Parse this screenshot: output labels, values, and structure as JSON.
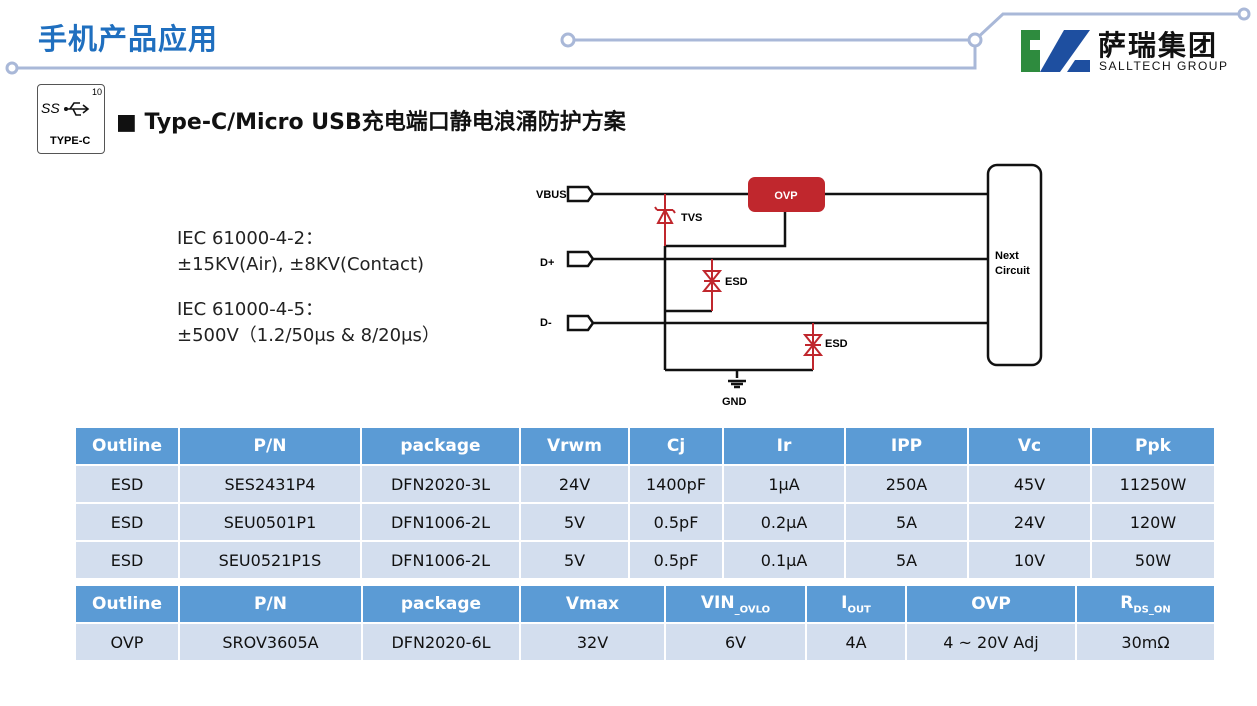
{
  "header": {
    "title": "手机产品应用",
    "logo_cn": "萨瑞集团",
    "logo_en": "SALLTECH GROUP"
  },
  "badge": {
    "ss": "SS",
    "num": "10",
    "label": "TYPE-C"
  },
  "subtitle": "■ Type-C/Micro USB充电端口静电浪涌防护方案",
  "standards": [
    {
      "name": "IEC 61000-4-2：",
      "value": "±15KV(Air), ±8KV(Contact)"
    },
    {
      "name": "IEC 61000-4-5：",
      "value": "±500V（1.2/50μs & 8/20μs）"
    }
  ],
  "diagram": {
    "vbus": "VBUS",
    "dplus": "D+",
    "dminus": "D-",
    "ovp": "OVP",
    "tvs": "TVS",
    "esd1": "ESD",
    "esd2": "ESD",
    "gnd": "GND",
    "next1": "Next",
    "next2": "Circuit",
    "accent": "#c0272d"
  },
  "esd_table": {
    "headers": [
      "Outline",
      "P/N",
      "package",
      "Vrwm",
      "Cj",
      "Ir",
      "IPP",
      "Vc",
      "Ppk"
    ],
    "rows": [
      [
        "ESD",
        "SES2431P4",
        "DFN2020-3L",
        "24V",
        "1400pF",
        "1μA",
        "250A",
        "45V",
        "11250W"
      ],
      [
        "ESD",
        "SEU0501P1",
        "DFN1006-2L",
        "5V",
        "0.5pF",
        "0.2μA",
        "5A",
        "24V",
        "120W"
      ],
      [
        "ESD",
        "SEU0521P1S",
        "DFN1006-2L",
        "5V",
        "0.5pF",
        "0.1μA",
        "5A",
        "10V",
        "50W"
      ]
    ]
  },
  "ovp_table": {
    "headers": [
      "Outline",
      "P/N",
      "package",
      "Vmax",
      "VIN",
      "I",
      "OVP",
      "R"
    ],
    "header_subs": {
      "4": "_OVLO",
      "5": "OUT",
      "7": "DS_ON"
    },
    "rows": [
      [
        "OVP",
        "SROV3605A",
        "DFN2020-6L",
        "32V",
        "6V",
        "4A",
        "4 ~ 20V Adj",
        "30mΩ"
      ]
    ]
  }
}
